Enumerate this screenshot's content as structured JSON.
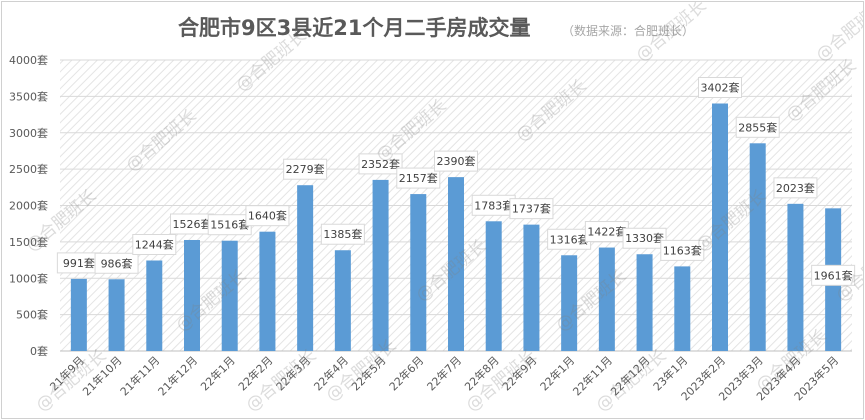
{
  "chart_data": {
    "type": "bar",
    "title": "合肥市9区3县近21个月二手房成交量",
    "subtitle": "（数据来源：合肥班长）",
    "xlabel": "",
    "ylabel": "",
    "ylim": [
      0,
      4000
    ],
    "yticks": [
      0,
      500,
      1000,
      1500,
      2000,
      2500,
      3000,
      3500,
      4000
    ],
    "ytick_suffix": "套",
    "value_suffix": "套",
    "grid": true,
    "legend": "none",
    "bar_color": "#5b9bd5",
    "categories": [
      "21年9月",
      "21年10月",
      "21年11月",
      "21年12月",
      "22年1月",
      "22年2月",
      "22年3月",
      "22年4月",
      "22年5月",
      "22年6月",
      "22年7月",
      "22年8月",
      "22年9月",
      "22年1月",
      "22年11月",
      "22年12月",
      "23年1月",
      "2023年2月",
      "2023年3月",
      "2023年4月",
      "2023年5月"
    ],
    "values": [
      991,
      986,
      1244,
      1526,
      1516,
      1640,
      2279,
      1385,
      2352,
      2157,
      2390,
      1783,
      1737,
      1316,
      1422,
      1330,
      1163,
      3402,
      2855,
      2023,
      1961
    ]
  },
  "watermark": "@合肥班长"
}
